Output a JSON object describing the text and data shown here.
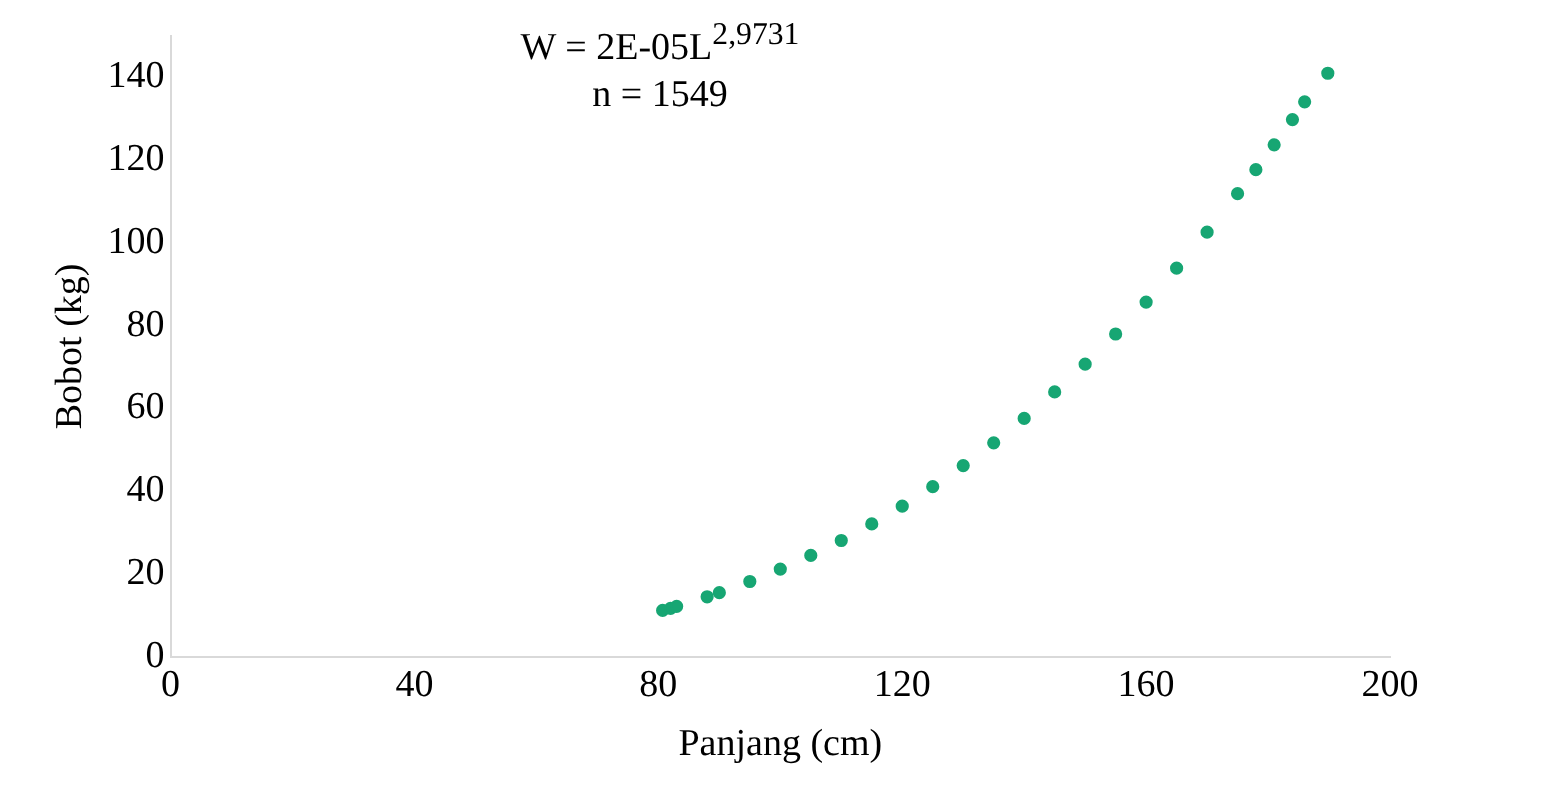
{
  "chart_data": {
    "type": "scatter",
    "xlabel": "Panjang (cm)",
    "ylabel": "Bobot (kg)",
    "annotations": [
      "W = 2E-05L$^{2,9731}$",
      "n = 1549"
    ],
    "series": [
      {
        "color": "#17a673",
        "x": [
          80.7,
          82,
          83,
          88,
          90,
          95,
          100,
          105,
          110,
          115,
          120,
          125,
          130,
          135,
          140,
          145,
          150,
          155,
          160,
          165,
          170,
          175,
          178,
          181,
          184,
          186,
          189.8
        ],
        "values": [
          11.2,
          11.7,
          12.2,
          14.5,
          15.5,
          18.2,
          21.2,
          24.5,
          28.1,
          32.1,
          36.4,
          41.1,
          46.2,
          51.7,
          57.6,
          64.0,
          70.7,
          78.0,
          85.7,
          93.9,
          102.6,
          111.9,
          117.7,
          123.7,
          129.8,
          134.1,
          141
        ]
      }
    ],
    "xlim": [
      0,
      200
    ],
    "xticks": [
      0,
      40,
      80,
      120,
      160,
      200
    ],
    "ylim": [
      0,
      150
    ],
    "yticks": [
      0,
      20,
      40,
      60,
      80,
      100,
      120,
      140
    ],
    "grid": false,
    "legend": false,
    "marker": "circle"
  }
}
